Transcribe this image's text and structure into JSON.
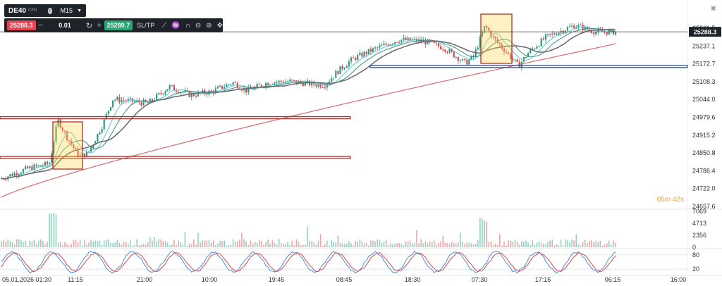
{
  "toolbar": {
    "symbol": "DE40",
    "source": "CFD",
    "timeframe": "M15",
    "sell_price": "25288.3",
    "quantity": "0.01",
    "buy_price": "25289.7",
    "sltp_label": "SL/TP"
  },
  "countdown": "05m 42s",
  "chart_data": {
    "type": "candlestick",
    "price_axis": {
      "range": [
        24657.6,
        25301.5
      ],
      "ticks": [
        25301.5,
        25237.1,
        25172.7,
        25108.3,
        25044.0,
        24979.6,
        24915.2,
        24850.8,
        24786.4,
        24722.0,
        24657.6
      ],
      "tick_labels": [
        "25301.5",
        "25237.1",
        "25172.7",
        "25108.3",
        "25044.0",
        "24979.6",
        "24915.2",
        "24850.8",
        "24786.4",
        "24722.0",
        "24657.6"
      ]
    },
    "current_price": 25288.3,
    "current_price_label": "25288.3",
    "x_tick_labels": [
      "05.01.2026 01:30",
      "11:15",
      "21:00",
      "10:00",
      "19:45",
      "08:45",
      "18:30",
      "07:30",
      "17:15",
      "06:15",
      "16:00"
    ],
    "zones": [
      {
        "type": "rect",
        "from": 24982,
        "to": 24976
      },
      {
        "type": "rect",
        "from": 24838,
        "to": 24832
      },
      {
        "type": "rect",
        "from": 25167,
        "to": 25162
      }
    ],
    "volume_panel": {
      "ticks": [
        7069,
        4713,
        2356,
        0
      ],
      "tick_labels": [
        "7069",
        "4713",
        "2356",
        "0"
      ]
    },
    "oscillator_panel": {
      "ticks": [
        80,
        20
      ],
      "tick_labels": [
        "80",
        "20"
      ]
    },
    "grid": false
  }
}
